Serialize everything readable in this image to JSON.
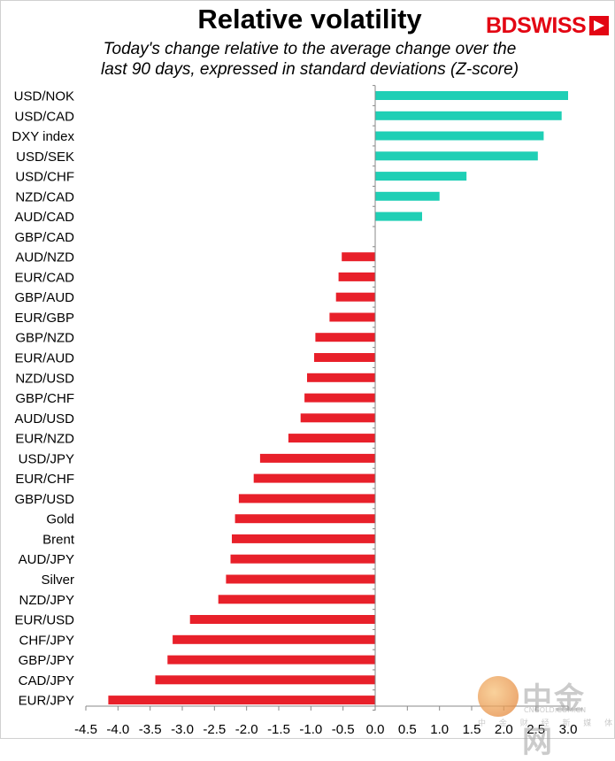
{
  "chart_data": {
    "type": "bar",
    "orientation": "horizontal",
    "title": "Relative volatility",
    "subtitle_lines": [
      "Today's change relative to the average change over the",
      "last 90 days, expressed in standard deviations (Z-score)"
    ],
    "categories": [
      "USD/NOK",
      "USD/CAD",
      "DXY index",
      "USD/SEK",
      "USD/CHF",
      "NZD/CAD",
      "AUD/CAD",
      "GBP/CAD",
      "AUD/NZD",
      "EUR/CAD",
      "GBP/AUD",
      "EUR/GBP",
      "GBP/NZD",
      "EUR/AUD",
      "NZD/USD",
      "GBP/CHF",
      "AUD/USD",
      "EUR/NZD",
      "USD/JPY",
      "EUR/CHF",
      "GBP/USD",
      "Gold",
      "Brent",
      "AUD/JPY",
      "Silver",
      "NZD/JPY",
      "EUR/USD",
      "CHF/JPY",
      "GBP/JPY",
      "CAD/JPY",
      "EUR/JPY"
    ],
    "values": [
      3.0,
      2.9,
      2.62,
      2.53,
      1.42,
      1.0,
      0.73,
      0.0,
      -0.52,
      -0.57,
      -0.61,
      -0.71,
      -0.93,
      -0.95,
      -1.06,
      -1.1,
      -1.16,
      -1.35,
      -1.79,
      -1.89,
      -2.12,
      -2.18,
      -2.23,
      -2.25,
      -2.32,
      -2.44,
      -2.88,
      -3.15,
      -3.23,
      -3.42,
      -4.15
    ],
    "xlim": [
      -4.5,
      3.0
    ],
    "xticks": [
      "-4.5",
      "-4.0",
      "-3.5",
      "-3.0",
      "-2.5",
      "-2.0",
      "-1.5",
      "-1.0",
      "-0.5",
      "0.0",
      "0.5",
      "1.0",
      "1.5",
      "2.0",
      "2.5",
      "3.0"
    ],
    "xtick_values": [
      -4.5,
      -4.0,
      -3.5,
      -3.0,
      -2.5,
      -2.0,
      -1.5,
      -1.0,
      -0.5,
      0.0,
      0.5,
      1.0,
      1.5,
      2.0,
      2.5,
      3.0
    ],
    "positive_color": "#1fcfb5",
    "negative_color": "#e8202a",
    "xlabel": "",
    "ylabel": ""
  },
  "brand": {
    "name_part1": "BD",
    "name_part2": "SWISS",
    "color": "#e30613"
  },
  "watermark": {
    "text": "中金网",
    "url": "CNGOLD.COM.CN",
    "sub": "中 金 财 经 新 媒 体"
  }
}
